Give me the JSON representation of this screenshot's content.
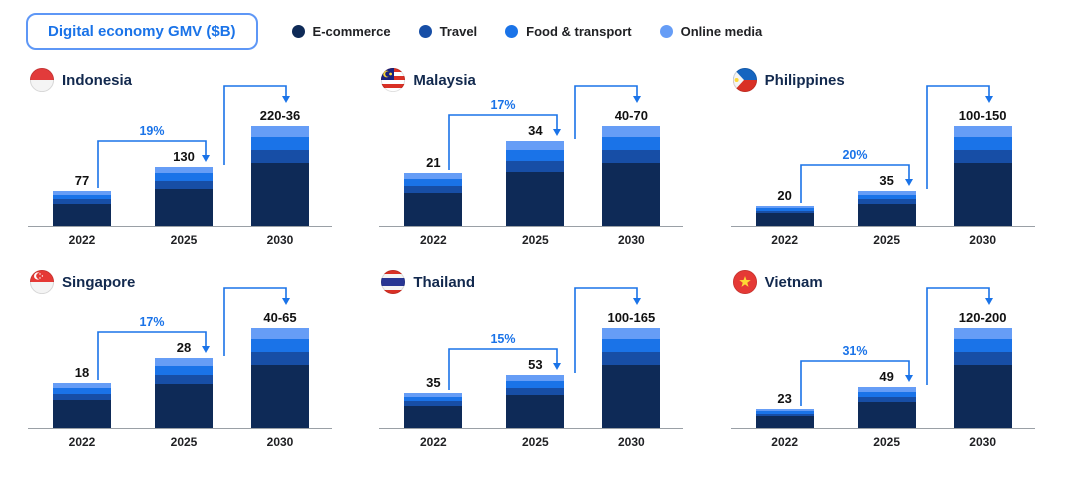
{
  "header": {
    "title": "Digital economy GMV ($B)"
  },
  "legend": {
    "items": [
      {
        "label": "E-commerce",
        "color": "#0e2a57"
      },
      {
        "label": "Travel",
        "color": "#174ea6"
      },
      {
        "label": "Food & transport",
        "color": "#1a73e8"
      },
      {
        "label": "Online media",
        "color": "#669df6"
      }
    ]
  },
  "chart_data": {
    "type": "bar",
    "stacked": true,
    "unit": "$B",
    "title": "Digital economy GMV ($B)",
    "years": [
      "2022",
      "2025",
      "2030"
    ],
    "segments": [
      "E-commerce",
      "Travel",
      "Food & transport",
      "Online media"
    ],
    "segment_fractions": [
      0.63,
      0.13,
      0.13,
      0.11
    ],
    "panels": [
      {
        "id": "indonesia",
        "country": "Indonesia",
        "growth": "19%",
        "bar_labels": [
          "77",
          "130",
          "220-36"
        ],
        "scale_values": [
          77,
          130,
          220
        ]
      },
      {
        "id": "malaysia",
        "country": "Malaysia",
        "growth": "17%",
        "bar_labels": [
          "21",
          "34",
          "40-70"
        ],
        "scale_values": [
          21,
          34,
          40
        ]
      },
      {
        "id": "philippines",
        "country": "Philippines",
        "growth": "20%",
        "bar_labels": [
          "20",
          "35",
          "100-150"
        ],
        "scale_values": [
          20,
          35,
          100
        ]
      },
      {
        "id": "singapore",
        "country": "Singapore",
        "growth": "17%",
        "bar_labels": [
          "18",
          "28",
          "40-65"
        ],
        "scale_values": [
          18,
          28,
          40
        ]
      },
      {
        "id": "thailand",
        "country": "Thailand",
        "growth": "15%",
        "bar_labels": [
          "35",
          "53",
          "100-165"
        ],
        "scale_values": [
          35,
          53,
          100
        ]
      },
      {
        "id": "vietnam",
        "country": "Vietnam",
        "growth": "31%",
        "bar_labels": [
          "23",
          "49",
          "120-200"
        ],
        "scale_values": [
          23,
          49,
          120
        ]
      }
    ],
    "arrow_color": "#1a73e8",
    "axis_color": "#9aa0a6",
    "legend_position": "top",
    "grid": false
  }
}
